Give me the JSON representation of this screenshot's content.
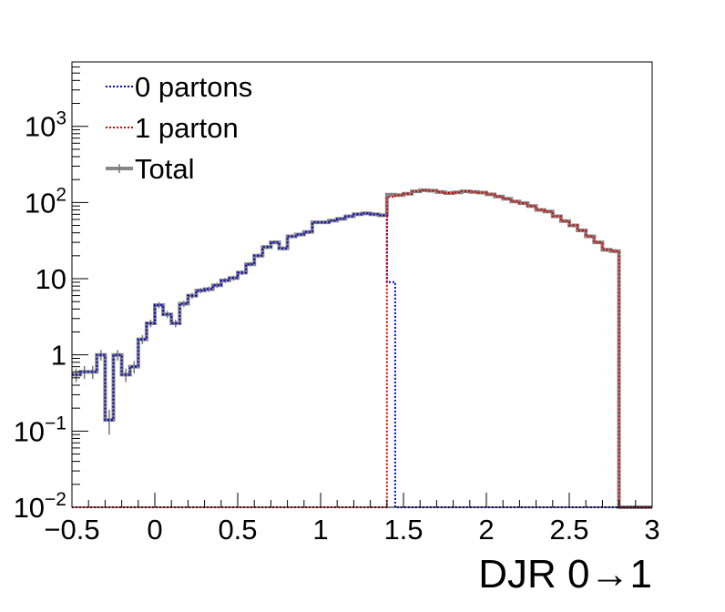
{
  "chart_data": {
    "type": "line",
    "title": "",
    "xlabel": "DJR 0→1",
    "ylabel": "",
    "xlim": [
      -0.5,
      3.0
    ],
    "ylim": [
      0.01,
      7000
    ],
    "yscale": "log",
    "grid": false,
    "legend_position": "top-left",
    "x_ticks": [
      {
        "value": -0.5,
        "label": "−0.5"
      },
      {
        "value": 0,
        "label": "0"
      },
      {
        "value": 0.5,
        "label": "0.5"
      },
      {
        "value": 1,
        "label": "1"
      },
      {
        "value": 1.5,
        "label": "1.5"
      },
      {
        "value": 2,
        "label": "2"
      },
      {
        "value": 2.5,
        "label": "2.5"
      },
      {
        "value": 3,
        "label": "3"
      }
    ],
    "y_ticks": [
      {
        "value": 0.01,
        "base": "10",
        "exp": "−2",
        "label": ""
      },
      {
        "value": 0.1,
        "base": "10",
        "exp": "−1",
        "label": ""
      },
      {
        "value": 1,
        "base": "",
        "exp": "",
        "label": "1"
      },
      {
        "value": 10,
        "base": "",
        "exp": "",
        "label": "10"
      },
      {
        "value": 100,
        "base": "10",
        "exp": "2",
        "label": ""
      },
      {
        "value": 1000,
        "base": "10",
        "exp": "3",
        "label": ""
      }
    ],
    "bin_edges_start": -0.5,
    "bin_width": 0.05,
    "series": [
      {
        "name": "0 partons",
        "color": "#0000cc",
        "line_style": "dotted",
        "values": [
          0.55,
          0.6,
          0.6,
          1.0,
          0.14,
          1.0,
          0.55,
          0.7,
          1.6,
          2.6,
          4.5,
          3.4,
          2.6,
          4.7,
          6.0,
          7.0,
          7.3,
          8.2,
          9.5,
          10.2,
          12.0,
          15.5,
          20.0,
          26.0,
          30.0,
          25.0,
          36.0,
          38.0,
          41.0,
          55.0,
          55.0,
          58.0,
          61.0,
          66.0,
          70.0,
          72.0,
          70.0,
          68.0,
          9.0,
          0.01,
          0.01,
          0.01,
          0.01,
          0.01,
          0.01,
          0.01,
          0.01,
          0.01,
          0.01,
          0.01,
          0.01,
          0.01,
          0.01,
          0.01,
          0.01,
          0.01,
          0.01,
          0.01,
          0.01,
          0.01,
          0.01,
          0.01,
          0.01,
          0.01,
          0.01,
          0.01,
          0.01,
          0.01,
          0.01,
          0.01
        ]
      },
      {
        "name": "1 parton",
        "color": "#dd0000",
        "line_style": "dotted",
        "values": [
          0.01,
          0.01,
          0.01,
          0.01,
          0.01,
          0.01,
          0.01,
          0.01,
          0.01,
          0.01,
          0.01,
          0.01,
          0.01,
          0.01,
          0.01,
          0.01,
          0.01,
          0.01,
          0.01,
          0.01,
          0.01,
          0.01,
          0.01,
          0.01,
          0.01,
          0.01,
          0.01,
          0.01,
          0.01,
          0.01,
          0.01,
          0.01,
          0.01,
          0.01,
          0.01,
          0.01,
          0.01,
          0.01,
          118.0,
          125.0,
          130.0,
          140.0,
          145.0,
          143.0,
          137.0,
          133.0,
          136.0,
          140.0,
          138.0,
          135.0,
          128.0,
          120.0,
          112.0,
          103.0,
          98.0,
          90.0,
          80.0,
          76.0,
          66.0,
          57.0,
          50.0,
          43.0,
          36.0,
          30.0,
          24.0,
          23.0
        ]
      },
      {
        "name": "Total",
        "color": "#888888",
        "line_style": "solid",
        "values": [
          0.55,
          0.6,
          0.6,
          1.0,
          0.14,
          1.0,
          0.55,
          0.7,
          1.6,
          2.6,
          4.5,
          3.4,
          2.6,
          4.7,
          6.0,
          7.0,
          7.3,
          8.2,
          9.5,
          10.2,
          12.0,
          15.5,
          20.0,
          26.0,
          30.0,
          25.0,
          36.0,
          38.0,
          41.0,
          55.0,
          55.0,
          58.0,
          61.0,
          66.0,
          70.0,
          72.0,
          70.0,
          68.0,
          127.0,
          125.0,
          130.0,
          140.0,
          145.0,
          143.0,
          137.0,
          133.0,
          136.0,
          140.0,
          138.0,
          135.0,
          128.0,
          120.0,
          112.0,
          103.0,
          98.0,
          90.0,
          80.0,
          76.0,
          66.0,
          57.0,
          50.0,
          43.0,
          36.0,
          30.0,
          24.0,
          23.0
        ]
      }
    ]
  }
}
